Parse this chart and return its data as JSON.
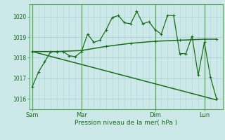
{
  "background_color": "#cce8e8",
  "grid_color": "#aad4d4",
  "line_color": "#1a6e1a",
  "dark_green": "#2d6e2d",
  "xlabel": "Pression niveau de la mer( hPa )",
  "ylim": [
    1015.5,
    1020.6
  ],
  "yticks": [
    1016,
    1017,
    1018,
    1019,
    1020
  ],
  "xtick_labels": [
    "Sam",
    "Mar",
    "Dim",
    "Lun"
  ],
  "xtick_positions": [
    0,
    8,
    20,
    28
  ],
  "xlim": [
    -0.5,
    31
  ],
  "line1_x": [
    0,
    1,
    2,
    3,
    4,
    5,
    6,
    7,
    8,
    9,
    10,
    11,
    12,
    13,
    14,
    15,
    16,
    17,
    18,
    19,
    20,
    21,
    22,
    23,
    24,
    25,
    26,
    27,
    28,
    29,
    30
  ],
  "line1_y": [
    1016.6,
    1017.3,
    1017.8,
    1018.3,
    1018.3,
    1018.3,
    1018.1,
    1018.05,
    1018.3,
    1019.15,
    1018.75,
    1018.85,
    1019.35,
    1019.95,
    1020.05,
    1019.7,
    1019.65,
    1020.25,
    1019.65,
    1019.75,
    1019.35,
    1019.15,
    1020.05,
    1020.05,
    1018.2,
    1018.2,
    1019.05,
    1017.15,
    1018.75,
    1017.05,
    1016.0
  ],
  "line2_x": [
    0,
    4,
    8,
    12,
    16,
    20,
    24,
    28,
    30
  ],
  "line2_y": [
    1018.3,
    1018.3,
    1018.35,
    1018.55,
    1018.7,
    1018.8,
    1018.85,
    1018.9,
    1018.9
  ],
  "line3_x": [
    0,
    30
  ],
  "line3_y": [
    1018.3,
    1015.95
  ],
  "vline_positions": [
    0,
    8,
    20,
    28
  ],
  "figsize": [
    3.2,
    2.0
  ],
  "dpi": 100
}
